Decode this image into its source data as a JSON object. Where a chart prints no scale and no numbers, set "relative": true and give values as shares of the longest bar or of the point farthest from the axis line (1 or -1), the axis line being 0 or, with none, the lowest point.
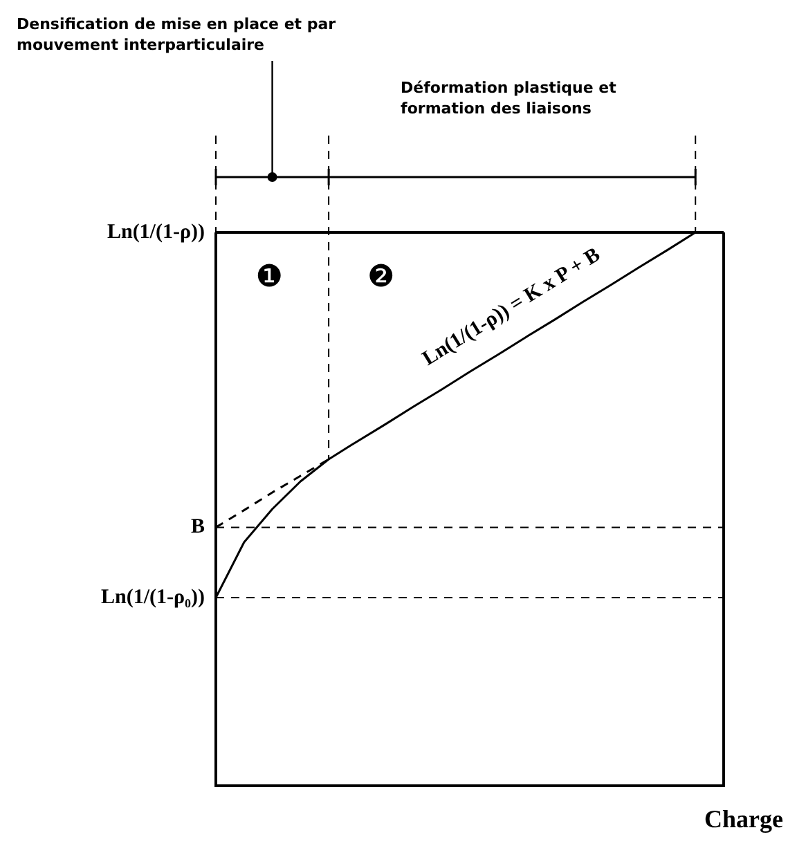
{
  "chart_data": {
    "type": "line",
    "relative": true,
    "xlabel": "Charge",
    "marker": "none",
    "categories": [
      null,
      null,
      null,
      null,
      null,
      null,
      null,
      null,
      null,
      null,
      null,
      null,
      null,
      null,
      null,
      null,
      null,
      null,
      null
    ],
    "series": [
      {
        "color": "#000000",
        "line_style": "solid",
        "values": [
          0.34,
          0.44,
          0.5,
          0.55,
          0.59,
          0.622,
          0.653,
          0.685,
          0.716,
          0.748,
          0.779,
          0.811,
          0.842,
          0.874,
          0.905,
          0.937,
          0.968,
          1.0,
          null
        ]
      },
      {
        "color": "#000000",
        "line_style": "dashed",
        "values": [
          0.467,
          0.498,
          0.53,
          0.56,
          0.59,
          null,
          null,
          null,
          null,
          null,
          null,
          null,
          null,
          null,
          null,
          null,
          null,
          null,
          null
        ]
      }
    ],
    "ref_lines": [
      {
        "axis": "y",
        "value": 1,
        "label": "Ln(1/(1-ρ))",
        "line_style": "solid"
      },
      {
        "axis": "y",
        "value": 0.467,
        "label": "B",
        "line_style": "dashed"
      },
      {
        "axis": "y",
        "value": 0.34,
        "label": "Ln(1/(1-ρ₀))",
        "line_style": "dashed"
      }
    ],
    "annotations": [
      "Densification de mise en place et par mouvement interparticulaire",
      "Déformation plastique et formation des liaisons",
      "❶",
      "❷",
      "Ln(1/(1-ρ)) = K x P + B"
    ]
  }
}
